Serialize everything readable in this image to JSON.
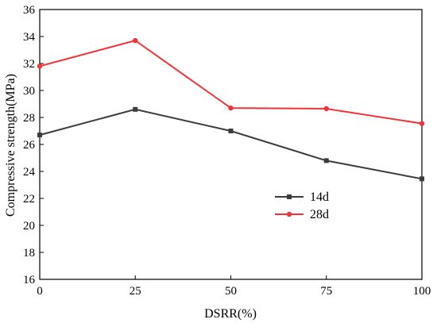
{
  "chart_data": {
    "type": "line",
    "title": "",
    "xlabel": "DSRR(%)",
    "ylabel": "Compressive strength(MPa)",
    "x": [
      0,
      25,
      50,
      75,
      100
    ],
    "xlim": [
      0,
      100
    ],
    "ylim": [
      16,
      36
    ],
    "xticks": [
      0,
      25,
      50,
      75,
      100
    ],
    "yticks": [
      16,
      18,
      20,
      22,
      24,
      26,
      28,
      30,
      32,
      34,
      36
    ],
    "grid": false,
    "legend_position": "center-right",
    "series": [
      {
        "name": "14d",
        "values": [
          26.7,
          28.6,
          27.0,
          24.8,
          23.45
        ],
        "color": "#3c3c3c",
        "marker": "square"
      },
      {
        "name": "28d",
        "values": [
          31.8,
          33.7,
          28.7,
          28.65,
          27.55
        ],
        "color": "#f2343a",
        "marker": "circle"
      }
    ]
  }
}
